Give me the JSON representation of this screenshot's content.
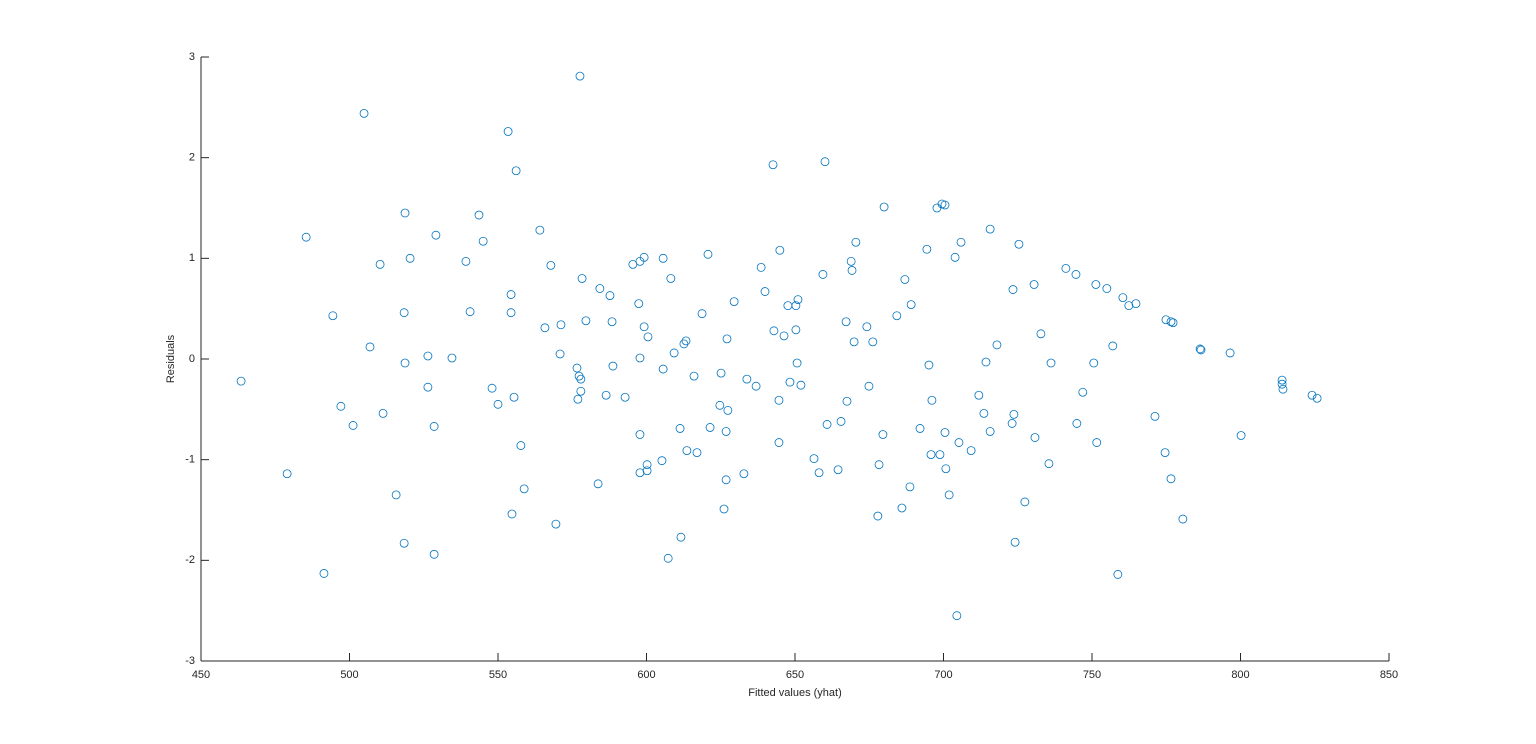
{
  "chart_data": {
    "type": "scatter",
    "xlabel": "Fitted values (yhat)",
    "ylabel": "Residuals",
    "color": "#0072bd",
    "xlim": [
      450,
      850
    ],
    "xticks": [
      450,
      500,
      550,
      600,
      650,
      700,
      750,
      800,
      850
    ],
    "ylim": [
      -3,
      3
    ],
    "yticks": [
      -3,
      -2,
      -1,
      0,
      1,
      2,
      3
    ],
    "x": [
      463.5,
      479,
      485.4,
      491.4,
      494.4,
      497.1,
      501.2,
      504.9,
      506.9,
      510.3,
      511.3,
      515.7,
      518.4,
      518.4,
      518.7,
      518.7,
      520.4,
      526.4,
      526.4,
      528.5,
      528.5,
      529.1,
      534.5,
      539.2,
      540.6,
      543.6,
      545,
      548,
      550,
      553.4,
      554.4,
      554.4,
      554.7,
      555.4,
      556.1,
      557.7,
      558.8,
      564.1,
      565.8,
      567.8,
      569.5,
      570.9,
      571.2,
      576.6,
      576.9,
      577.3,
      577.6,
      577.9,
      577.9,
      578.3,
      579.6,
      583.7,
      584.3,
      586.4,
      587.7,
      588.4,
      588.7,
      592.8,
      595.4,
      597.4,
      597.8,
      597.8,
      597.8,
      597.8,
      599.2,
      599.2,
      600.2,
      600.2,
      600.5,
      605.2,
      605.6,
      605.6,
      607.3,
      608.2,
      609.3,
      611.3,
      611.6,
      612.6,
      613.3,
      613.6,
      616,
      617,
      618.7,
      620.7,
      621.4,
      624.7,
      625.1,
      626.1,
      626.8,
      626.8,
      627.1,
      627.4,
      629.5,
      632.8,
      633.8,
      636.9,
      638.6,
      639.9,
      642.6,
      642.9,
      644.6,
      644.6,
      644.9,
      646.3,
      647.6,
      648.3,
      650.3,
      650.3,
      650.7,
      651,
      652,
      656.4,
      658.1,
      659.4,
      660.1,
      660.8,
      664.5,
      665.5,
      667.2,
      667.5,
      668.9,
      669.2,
      669.9,
      670.5,
      674.2,
      674.9,
      676.2,
      677.9,
      678.3,
      679.6,
      680,
      684.3,
      686,
      687,
      688.7,
      689.1,
      692.1,
      694.4,
      695.1,
      695.8,
      696.1,
      697.8,
      698.8,
      699.5,
      700.5,
      700.5,
      700.8,
      701.9,
      703.9,
      704.5,
      705.2,
      705.9,
      709.3,
      711.9,
      713.6,
      714.3,
      715.7,
      715.7,
      718,
      723.1,
      723.4,
      723.7,
      724.1,
      725.4,
      727.4,
      730.5,
      730.8,
      732.8,
      735.5,
      736.2,
      741.2,
      744.6,
      744.9,
      746.9,
      750.6,
      751.3,
      751.6,
      755,
      757,
      758.7,
      760.4,
      762.4,
      764.8,
      771.2,
      774.6,
      774.9,
      776.6,
      777.3,
      776.6,
      780.6,
      786.4,
      786.7,
      796.5,
      800.2,
      814,
      814,
      814.3,
      824.1,
      825.8
    ],
    "values": [
      -0.22,
      -1.14,
      1.21,
      -2.13,
      0.43,
      -0.47,
      -0.66,
      2.44,
      0.12,
      0.94,
      -0.54,
      -1.35,
      -1.83,
      0.46,
      1.45,
      -0.04,
      1.0,
      -0.28,
      0.03,
      -0.67,
      -1.94,
      1.23,
      0.01,
      0.97,
      0.47,
      1.43,
      1.17,
      -0.29,
      -0.45,
      2.26,
      0.64,
      0.46,
      -1.54,
      -0.38,
      1.87,
      -0.86,
      -1.29,
      1.28,
      0.31,
      0.93,
      -1.64,
      0.05,
      0.34,
      -0.09,
      -0.4,
      -0.17,
      2.81,
      -0.2,
      -0.32,
      0.8,
      0.38,
      -1.24,
      0.7,
      -0.36,
      0.63,
      0.37,
      -0.07,
      -0.38,
      0.94,
      0.55,
      0.97,
      -0.75,
      0.01,
      -1.13,
      1.01,
      0.32,
      -1.05,
      -1.11,
      0.22,
      -1.01,
      1.0,
      -0.1,
      -1.98,
      0.8,
      0.06,
      -0.69,
      -1.77,
      0.15,
      0.18,
      -0.91,
      -0.17,
      -0.93,
      0.45,
      1.04,
      -0.68,
      -0.46,
      -0.14,
      -1.49,
      -0.72,
      -1.2,
      0.2,
      -0.51,
      0.57,
      -1.14,
      -0.2,
      -0.27,
      0.91,
      0.67,
      1.93,
      0.28,
      -0.41,
      -0.83,
      1.08,
      0.23,
      0.53,
      -0.23,
      0.29,
      0.53,
      -0.04,
      0.59,
      -0.26,
      -0.99,
      -1.13,
      0.84,
      1.96,
      -0.65,
      -1.1,
      -0.62,
      0.37,
      -0.42,
      0.97,
      0.88,
      0.17,
      1.16,
      0.32,
      -0.27,
      0.17,
      -1.56,
      -1.05,
      -0.75,
      1.51,
      0.43,
      -1.48,
      0.79,
      -1.27,
      0.54,
      -0.69,
      1.09,
      -0.06,
      -0.95,
      -0.41,
      1.5,
      -0.95,
      1.54,
      1.53,
      -0.73,
      -1.09,
      -1.35,
      1.01,
      -2.55,
      -0.83,
      1.16,
      -0.91,
      -0.36,
      -0.54,
      -0.03,
      1.29,
      -0.72,
      0.14,
      -0.64,
      0.69,
      -0.55,
      -1.82,
      1.14,
      -1.42,
      0.74,
      -0.78,
      0.25,
      -1.04,
      -0.04,
      0.9,
      0.84,
      -0.64,
      -0.33,
      -0.04,
      0.74,
      -0.83,
      0.7,
      0.13,
      -2.14,
      0.61,
      0.53,
      0.55,
      -0.57,
      -0.93,
      0.39,
      0.37,
      0.36,
      -1.19,
      -1.59,
      0.1,
      0.09,
      0.06,
      -0.76,
      -0.21,
      -0.25,
      -0.3,
      -0.36,
      -0.39
    ]
  }
}
